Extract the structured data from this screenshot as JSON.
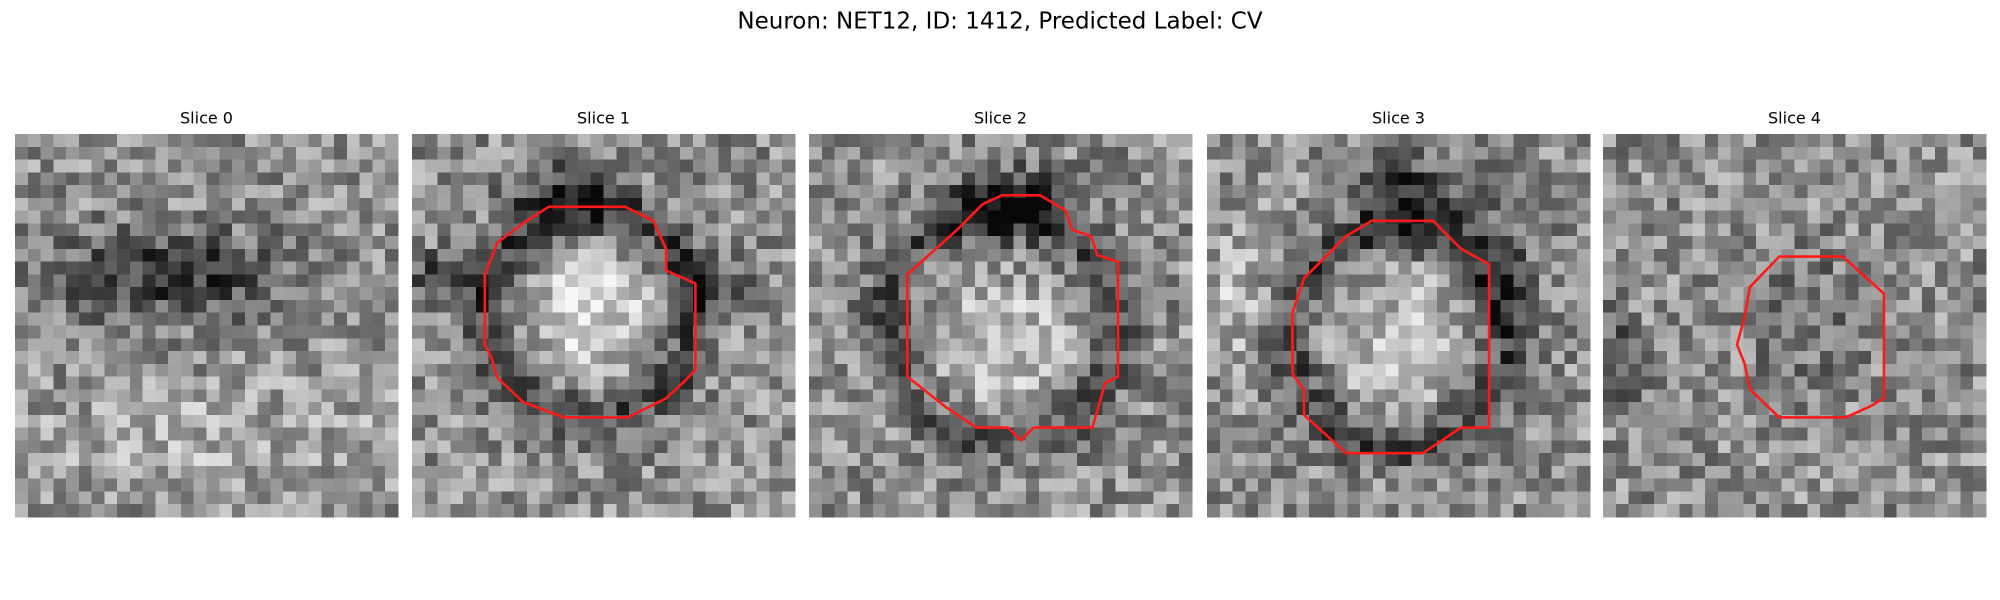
{
  "header": {
    "title": "Neuron: NET12, ID: 1412, Predicted Label: CV"
  },
  "panels": [
    {
      "title": "Slice 0"
    },
    {
      "title": "Slice 1"
    },
    {
      "title": "Slice 2"
    },
    {
      "title": "Slice 3"
    },
    {
      "title": "Slice 4"
    }
  ]
}
